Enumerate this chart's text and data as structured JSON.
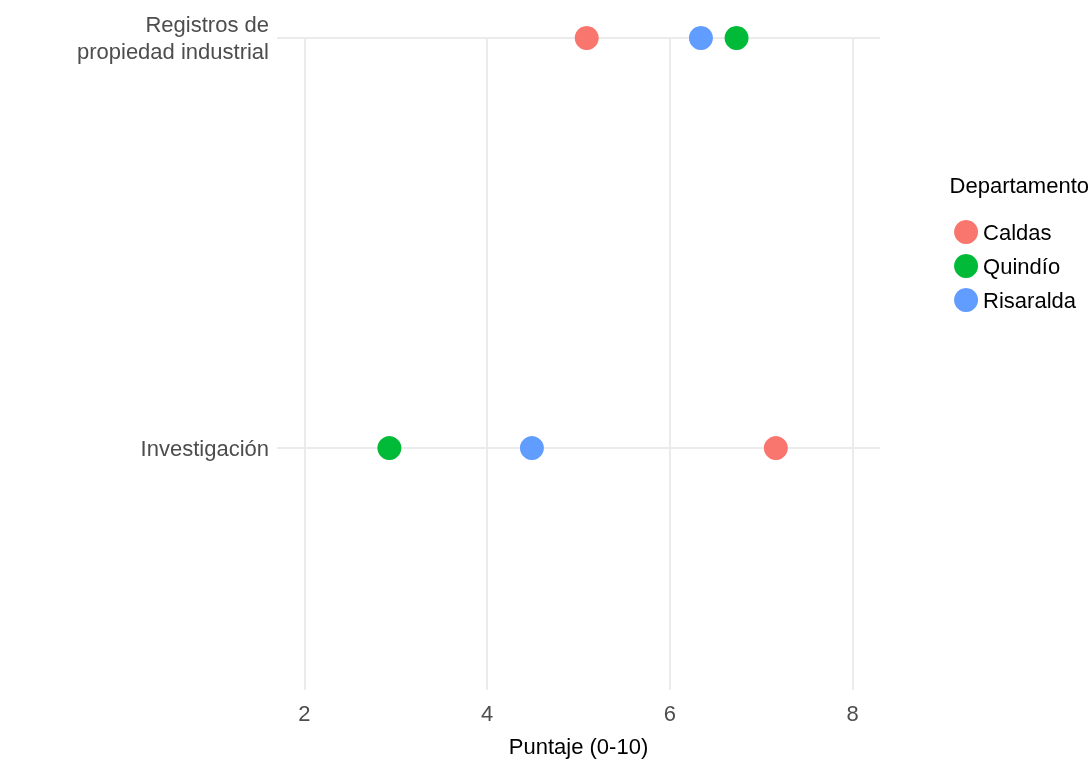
{
  "chart_data": {
    "type": "scatter",
    "xlabel": "Puntaje (0-10)",
    "legend_title": "Departamento",
    "categories": [
      "Registros de\npropiedad industrial",
      "Investigación"
    ],
    "orientation": "horizontal",
    "series": [
      {
        "name": "Caldas",
        "color": "#f8766d",
        "values": [
          5.09,
          7.16
        ]
      },
      {
        "name": "Quindío",
        "color": "#00ba38",
        "values": [
          6.73,
          2.93
        ]
      },
      {
        "name": "Risaralda",
        "color": "#619cff",
        "values": [
          6.34,
          4.49
        ]
      }
    ],
    "xlim": [
      1.7,
      8.3
    ],
    "xticks": [
      2,
      4,
      6,
      8
    ],
    "grid": true,
    "legend": "right",
    "marker": "circle"
  }
}
